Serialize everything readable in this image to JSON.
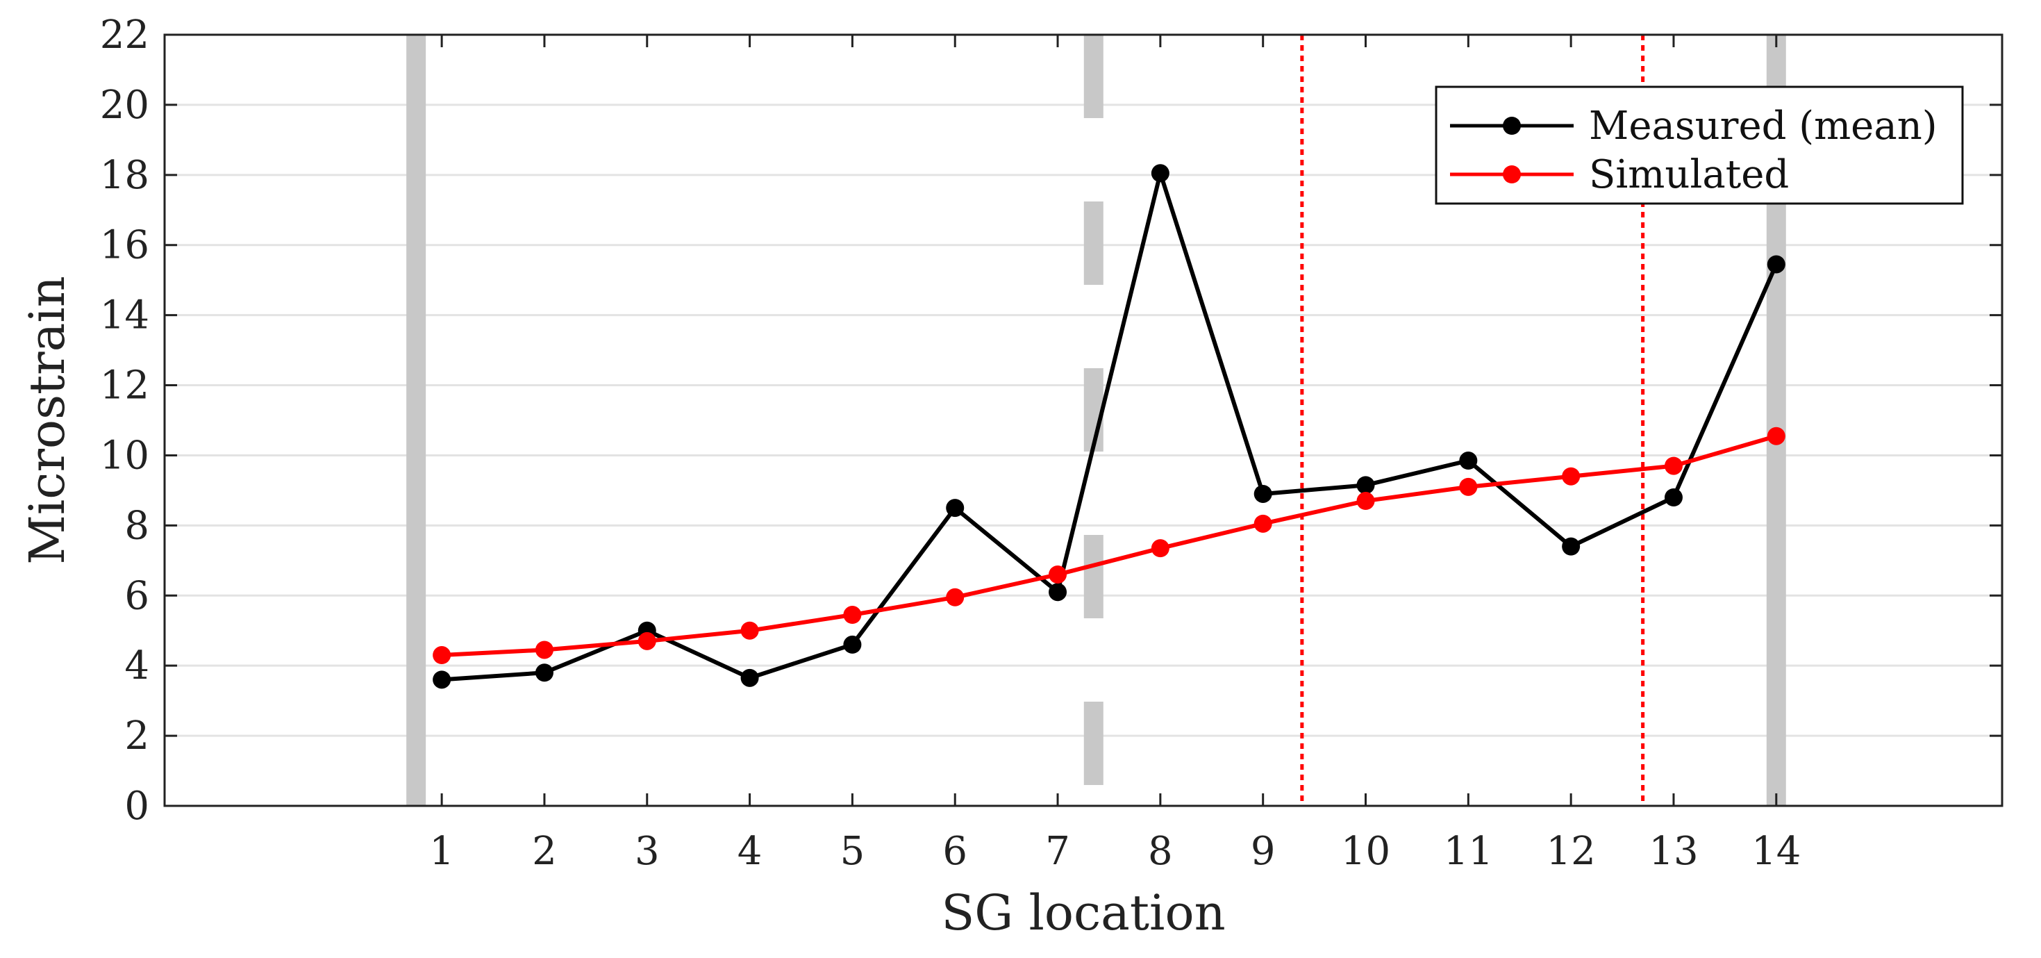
{
  "chart_data": {
    "type": "line",
    "xlabel": "SG location",
    "ylabel": "Microstrain",
    "xlim": [
      -1.7,
      16.2
    ],
    "ylim": [
      0,
      22
    ],
    "x_ticks": [
      1,
      2,
      3,
      4,
      5,
      6,
      7,
      8,
      9,
      10,
      11,
      12,
      13,
      14
    ],
    "y_ticks": [
      0,
      2,
      4,
      6,
      8,
      10,
      12,
      14,
      16,
      18,
      20,
      22
    ],
    "grid": "horizontal",
    "legend_position": "top-right",
    "series": [
      {
        "name": "Measured (mean)",
        "color": "#000000",
        "x": [
          1,
          2,
          3,
          4,
          5,
          6,
          7,
          8,
          9,
          10,
          11,
          12,
          13,
          14
        ],
        "values": [
          3.6,
          3.8,
          5.0,
          3.65,
          4.6,
          8.5,
          6.1,
          18.05,
          8.9,
          9.15,
          9.85,
          7.4,
          8.8,
          15.45
        ]
      },
      {
        "name": "Simulated",
        "color": "#ff0000",
        "x": [
          1,
          2,
          3,
          4,
          5,
          6,
          7,
          8,
          9,
          10,
          11,
          12,
          13,
          14
        ],
        "values": [
          4.3,
          4.45,
          4.7,
          5.0,
          5.45,
          5.95,
          6.6,
          7.35,
          8.05,
          8.7,
          9.1,
          9.4,
          9.7,
          10.55
        ]
      }
    ],
    "reference_lines": [
      {
        "x": 0.75,
        "style": "solid",
        "color": "#c8c8c8"
      },
      {
        "x": 7.35,
        "style": "dashed",
        "color": "#c8c8c8"
      },
      {
        "x": 9.38,
        "style": "dotted",
        "color": "#ff0000"
      },
      {
        "x": 12.7,
        "style": "dotted",
        "color": "#ff0000"
      },
      {
        "x": 14.0,
        "style": "solid",
        "color": "#c8c8c8"
      }
    ]
  }
}
